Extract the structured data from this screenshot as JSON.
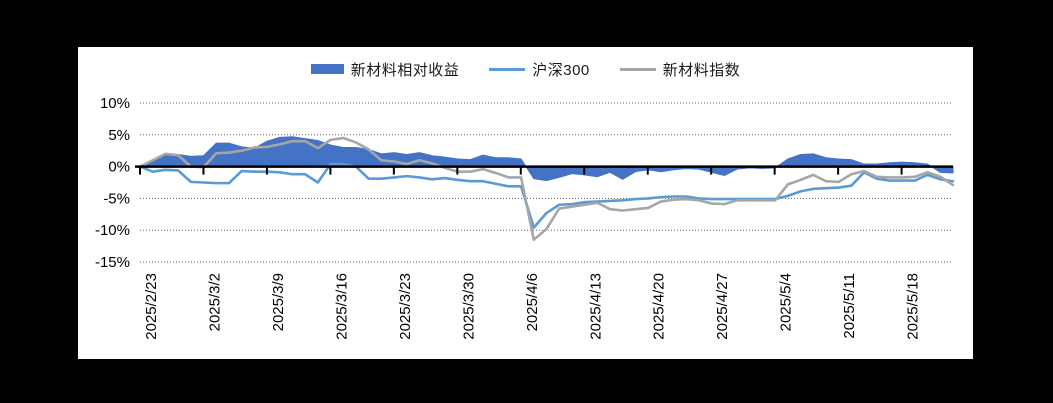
{
  "page": {
    "background": "#000000",
    "panel_background": "#ffffff"
  },
  "legend": {
    "items": [
      {
        "label": "新材料相对收益",
        "swatch": "area",
        "color": "#4472C4"
      },
      {
        "label": "沪深300",
        "swatch": "line",
        "color": "#5B9BD5"
      },
      {
        "label": "新材料指数",
        "swatch": "line",
        "color": "#A6A6A6"
      }
    ]
  },
  "chart_data": {
    "type": "combo",
    "title": "",
    "xlabel": "",
    "ylabel": "",
    "ylim": [
      -15,
      10
    ],
    "grid": "horizontal-dotted",
    "legend_position": "top-center",
    "zero_axis": {
      "color": "#000000",
      "width": 2.5
    },
    "gridline_color": "#666666",
    "y_ticks": [
      {
        "value": 10,
        "label": "10%"
      },
      {
        "value": 5,
        "label": "5%"
      },
      {
        "value": 0,
        "label": "0%"
      },
      {
        "value": -5,
        "label": "-5%"
      },
      {
        "value": -10,
        "label": "-10%"
      },
      {
        "value": -15,
        "label": "-15%"
      }
    ],
    "x_labels": [
      "2025/2/23",
      "2025/3/2",
      "2025/3/9",
      "2025/3/16",
      "2025/3/23",
      "2025/3/30",
      "2025/4/6",
      "2025/4/13",
      "2025/4/20",
      "2025/4/27",
      "2025/5/4",
      "2025/5/11",
      "2025/5/18"
    ],
    "series": [
      {
        "name": "新材料相对收益",
        "type": "area",
        "color": "#4472C4",
        "unit": "%",
        "values": [
          0.0,
          0.8,
          1.9,
          1.9,
          1.6,
          1.7,
          3.7,
          3.7,
          3.1,
          2.9,
          4.0,
          4.6,
          4.7,
          4.4,
          4.1,
          3.4,
          3.0,
          3.0,
          2.7,
          2.0,
          2.2,
          1.9,
          2.2,
          1.7,
          1.5,
          1.2,
          1.1,
          1.8,
          1.4,
          1.4,
          1.2,
          -1.9,
          -2.2,
          -1.7,
          -1.1,
          -1.3,
          -1.6,
          -0.9,
          -2.0,
          -0.8,
          -0.5,
          -0.8,
          -0.5,
          -0.3,
          -0.4,
          -0.9,
          -1.4,
          -0.4,
          -0.2,
          -0.3,
          -0.2,
          1.2,
          1.9,
          2.0,
          1.4,
          1.2,
          1.1,
          0.4,
          0.4,
          0.6,
          0.7,
          0.6,
          0.4,
          -0.9,
          -1.0
        ]
      },
      {
        "name": "沪深300",
        "type": "line",
        "color": "#5B9BD5",
        "unit": "%",
        "values": [
          0.0,
          -0.8,
          -0.5,
          -0.6,
          -2.4,
          -2.5,
          -2.6,
          -2.6,
          -0.7,
          -0.8,
          -0.8,
          -0.9,
          -1.2,
          -1.2,
          -2.5,
          0.4,
          0.4,
          0.0,
          -1.9,
          -1.9,
          -1.7,
          -1.5,
          -1.7,
          -2.0,
          -1.8,
          -2.1,
          -2.3,
          -2.3,
          -2.7,
          -3.1,
          -3.1,
          -9.6,
          -7.3,
          -6.0,
          -5.9,
          -5.6,
          -5.5,
          -5.4,
          -5.3,
          -5.1,
          -5.0,
          -4.8,
          -4.7,
          -4.7,
          -5.0,
          -5.1,
          -5.1,
          -5.1,
          -5.1,
          -5.1,
          -5.1,
          -4.6,
          -3.9,
          -3.5,
          -3.4,
          -3.3,
          -3.0,
          -0.9,
          -1.9,
          -2.2,
          -2.2,
          -2.2,
          -1.3,
          -2.0,
          -2.3
        ]
      },
      {
        "name": "新材料指数",
        "type": "line",
        "color": "#A6A6A6",
        "unit": "%",
        "values": [
          0.0,
          1.0,
          2.0,
          1.8,
          0.0,
          -0.1,
          2.1,
          2.2,
          2.5,
          3.0,
          3.1,
          3.5,
          4.0,
          4.0,
          2.9,
          4.2,
          4.5,
          3.8,
          2.7,
          1.0,
          0.8,
          0.4,
          1.0,
          0.5,
          -0.2,
          -0.8,
          -0.8,
          -0.4,
          -1.0,
          -1.7,
          -1.7,
          -11.5,
          -9.8,
          -6.6,
          -6.3,
          -6.0,
          -5.7,
          -6.7,
          -6.9,
          -6.7,
          -6.5,
          -5.5,
          -5.2,
          -5.1,
          -5.3,
          -5.8,
          -5.9,
          -5.3,
          -5.3,
          -5.3,
          -5.3,
          -2.8,
          -2.1,
          -1.3,
          -2.3,
          -2.4,
          -1.2,
          -0.7,
          -1.6,
          -1.7,
          -1.7,
          -1.6,
          -0.9,
          -1.6,
          -2.9
        ]
      }
    ]
  }
}
